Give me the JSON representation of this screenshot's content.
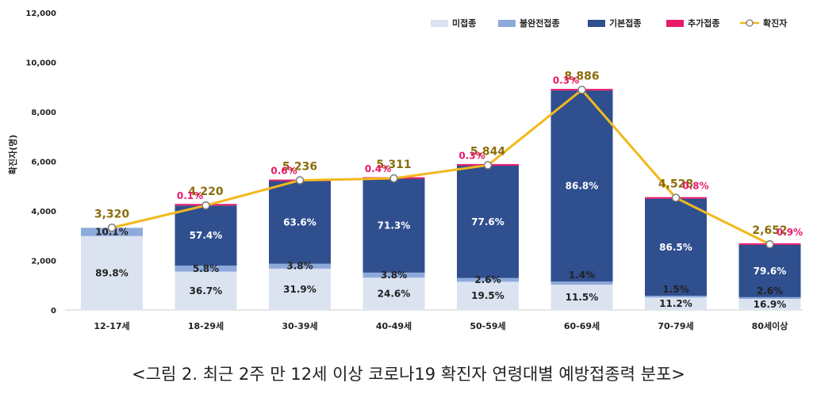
{
  "chart_data": {
    "type": "bar",
    "categories": [
      "12-17세",
      "18-29세",
      "30-39세",
      "40-49세",
      "50-59세",
      "60-69세",
      "70-79세",
      "80세이상"
    ],
    "ylabel": "확진자(명)",
    "ylim": [
      0,
      12000
    ],
    "yticks": [
      "0",
      "2,000",
      "4,000",
      "6,000",
      "8,000",
      "10,000",
      "12,000"
    ],
    "legend_position": "top-right",
    "series": [
      {
        "name": "미접종",
        "color": "#dbe3f1",
        "pct": [
          89.8,
          36.7,
          31.9,
          24.6,
          19.5,
          11.5,
          11.2,
          16.9
        ],
        "labels": [
          "89.8%",
          "36.7%",
          "31.9%",
          "24.6%",
          "19.5%",
          "11.5%",
          "11.2%",
          "16.9%"
        ]
      },
      {
        "name": "불완전접종",
        "color": "#8eaadb",
        "pct": [
          10.1,
          5.8,
          3.8,
          3.8,
          2.6,
          1.4,
          1.5,
          2.6
        ],
        "labels": [
          "10.1%",
          "5.8%",
          "3.8%",
          "3.8%",
          "2.6%",
          "1.4%",
          "1.5%",
          "2.6%"
        ]
      },
      {
        "name": "기본접종",
        "color": "#2f4f8f",
        "pct": [
          0,
          57.4,
          63.6,
          71.3,
          77.6,
          86.8,
          86.5,
          79.6
        ],
        "labels": [
          "",
          "57.4%",
          "63.6%",
          "71.3%",
          "77.6%",
          "86.8%",
          "86.5%",
          "79.6%"
        ]
      },
      {
        "name": "추가접종",
        "color": "#e8196b",
        "pct": [
          0,
          0.1,
          0.6,
          0.4,
          0.3,
          0.3,
          0.8,
          0.9
        ],
        "labels": [
          "",
          "0.1%",
          "0.6%",
          "0.4%",
          "0.3%",
          "0.3%",
          "0.8%",
          "0.9%"
        ]
      }
    ],
    "line": {
      "name": "확진자",
      "color": "#f2b81c",
      "values": [
        3320,
        4220,
        5236,
        5311,
        5844,
        8886,
        4528,
        2652
      ],
      "labels": [
        "3,320",
        "4,220",
        "5,236",
        "5,311",
        "5,844",
        "8,886",
        "4,528",
        "2,652"
      ]
    }
  },
  "caption": "<그림 2. 최근 2주 만 12세 이상 코로나19 확진자 연령대별 예방접종력 분포>"
}
